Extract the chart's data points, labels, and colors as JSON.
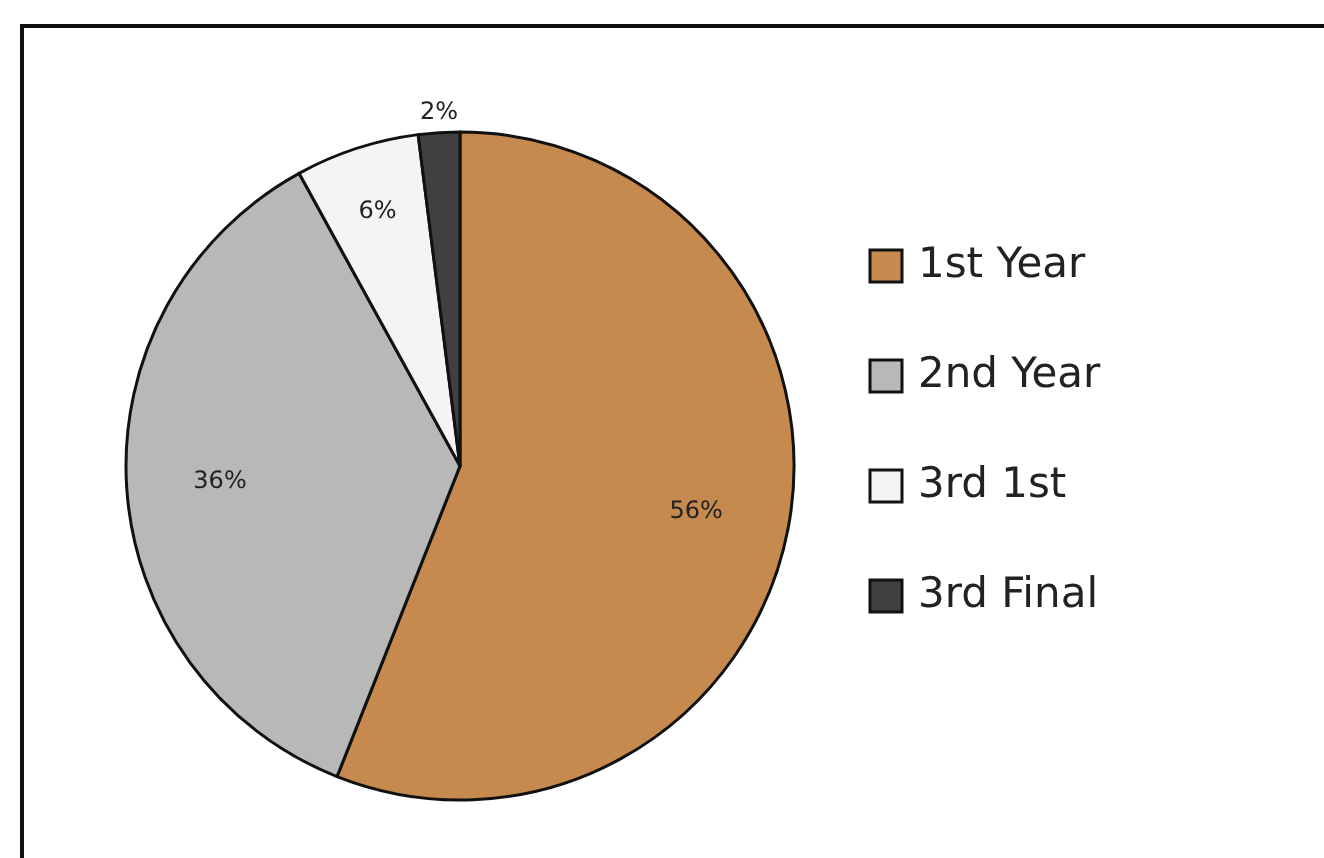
{
  "chart_data": {
    "type": "pie",
    "categories": [
      "1st Year",
      "2nd Year",
      "3rd 1st",
      "3rd Final"
    ],
    "values": [
      56,
      36,
      6,
      2
    ],
    "colors": [
      "#c68a4e",
      "#b8b8b8",
      "#f4f4f4",
      "#404040"
    ],
    "value_labels": [
      "56%",
      "36%",
      "6%",
      "2%"
    ],
    "legend": "right"
  }
}
